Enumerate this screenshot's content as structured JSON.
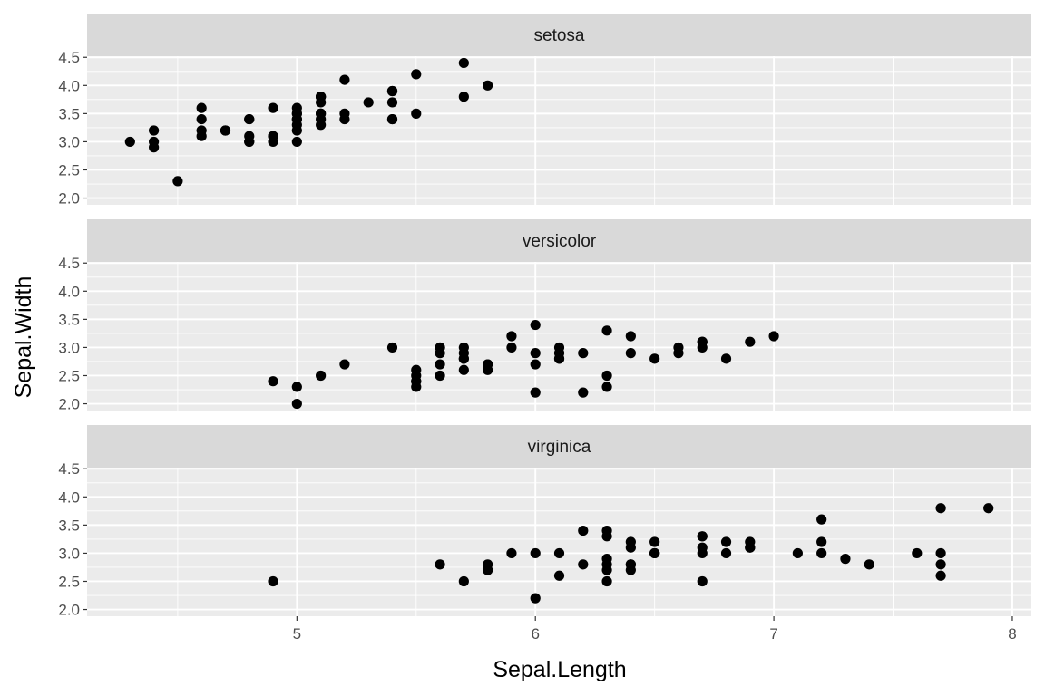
{
  "chart_data": {
    "type": "scatter",
    "xlabel": "Sepal.Length",
    "ylabel": "Sepal.Width",
    "xlim": [
      4.12,
      8.08
    ],
    "ylim": [
      1.88,
      4.52
    ],
    "x_ticks": [
      5,
      6,
      7,
      8
    ],
    "x_tick_labels": [
      "5",
      "6",
      "7",
      "8"
    ],
    "y_ticks": [
      2.0,
      2.5,
      3.0,
      3.5,
      4.0,
      4.5
    ],
    "y_tick_labels": [
      "2.0",
      "2.5",
      "3.0",
      "3.5",
      "4.0",
      "4.5"
    ],
    "grid": true,
    "legend": "none",
    "colors": {
      "panel_bg": "#ebebeb",
      "strip_bg": "#d9d9d9",
      "grid": "#ffffff",
      "point": "#000000"
    },
    "facets": [
      {
        "name": "setosa",
        "points": [
          [
            5.1,
            3.5
          ],
          [
            4.9,
            3.0
          ],
          [
            4.7,
            3.2
          ],
          [
            4.6,
            3.1
          ],
          [
            5.0,
            3.6
          ],
          [
            5.4,
            3.9
          ],
          [
            4.6,
            3.4
          ],
          [
            5.0,
            3.4
          ],
          [
            4.4,
            2.9
          ],
          [
            4.9,
            3.1
          ],
          [
            5.4,
            3.7
          ],
          [
            4.8,
            3.4
          ],
          [
            4.8,
            3.0
          ],
          [
            4.3,
            3.0
          ],
          [
            5.8,
            4.0
          ],
          [
            5.7,
            4.4
          ],
          [
            5.4,
            3.9
          ],
          [
            5.1,
            3.5
          ],
          [
            5.7,
            3.8
          ],
          [
            5.1,
            3.8
          ],
          [
            5.4,
            3.4
          ],
          [
            5.1,
            3.7
          ],
          [
            4.6,
            3.6
          ],
          [
            5.1,
            3.3
          ],
          [
            4.8,
            3.4
          ],
          [
            5.0,
            3.0
          ],
          [
            5.0,
            3.4
          ],
          [
            5.2,
            3.5
          ],
          [
            5.2,
            3.4
          ],
          [
            4.7,
            3.2
          ],
          [
            4.8,
            3.1
          ],
          [
            5.4,
            3.4
          ],
          [
            5.2,
            4.1
          ],
          [
            5.5,
            4.2
          ],
          [
            4.9,
            3.1
          ],
          [
            5.0,
            3.2
          ],
          [
            5.5,
            3.5
          ],
          [
            4.9,
            3.6
          ],
          [
            4.4,
            3.0
          ],
          [
            5.1,
            3.4
          ],
          [
            5.0,
            3.5
          ],
          [
            4.5,
            2.3
          ],
          [
            4.4,
            3.2
          ],
          [
            5.0,
            3.5
          ],
          [
            5.1,
            3.8
          ],
          [
            4.8,
            3.0
          ],
          [
            5.1,
            3.8
          ],
          [
            4.6,
            3.2
          ],
          [
            5.3,
            3.7
          ],
          [
            5.0,
            3.3
          ]
        ]
      },
      {
        "name": "versicolor",
        "points": [
          [
            7.0,
            3.2
          ],
          [
            6.4,
            3.2
          ],
          [
            6.9,
            3.1
          ],
          [
            5.5,
            2.3
          ],
          [
            6.5,
            2.8
          ],
          [
            5.7,
            2.8
          ],
          [
            6.3,
            3.3
          ],
          [
            4.9,
            2.4
          ],
          [
            6.6,
            2.9
          ],
          [
            5.2,
            2.7
          ],
          [
            5.0,
            2.0
          ],
          [
            5.9,
            3.0
          ],
          [
            6.0,
            2.2
          ],
          [
            6.1,
            2.9
          ],
          [
            5.6,
            2.9
          ],
          [
            6.7,
            3.1
          ],
          [
            5.6,
            3.0
          ],
          [
            5.8,
            2.7
          ],
          [
            6.2,
            2.2
          ],
          [
            5.6,
            2.5
          ],
          [
            5.9,
            3.2
          ],
          [
            6.1,
            2.8
          ],
          [
            6.3,
            2.5
          ],
          [
            6.1,
            2.8
          ],
          [
            6.4,
            2.9
          ],
          [
            6.6,
            3.0
          ],
          [
            6.8,
            2.8
          ],
          [
            6.7,
            3.0
          ],
          [
            6.0,
            2.9
          ],
          [
            5.7,
            2.6
          ],
          [
            5.5,
            2.4
          ],
          [
            5.5,
            2.4
          ],
          [
            5.8,
            2.7
          ],
          [
            6.0,
            2.7
          ],
          [
            5.4,
            3.0
          ],
          [
            6.0,
            3.4
          ],
          [
            6.7,
            3.1
          ],
          [
            6.3,
            2.3
          ],
          [
            5.6,
            3.0
          ],
          [
            5.5,
            2.5
          ],
          [
            5.5,
            2.6
          ],
          [
            6.1,
            3.0
          ],
          [
            5.8,
            2.6
          ],
          [
            5.0,
            2.3
          ],
          [
            5.6,
            2.7
          ],
          [
            5.7,
            3.0
          ],
          [
            5.7,
            2.9
          ],
          [
            6.2,
            2.9
          ],
          [
            5.1,
            2.5
          ],
          [
            5.7,
            2.8
          ]
        ]
      },
      {
        "name": "virginica",
        "points": [
          [
            6.3,
            3.3
          ],
          [
            5.8,
            2.7
          ],
          [
            7.1,
            3.0
          ],
          [
            6.3,
            2.9
          ],
          [
            6.5,
            3.0
          ],
          [
            7.6,
            3.0
          ],
          [
            4.9,
            2.5
          ],
          [
            7.3,
            2.9
          ],
          [
            6.7,
            2.5
          ],
          [
            7.2,
            3.6
          ],
          [
            6.5,
            3.2
          ],
          [
            6.4,
            2.7
          ],
          [
            6.8,
            3.0
          ],
          [
            5.7,
            2.5
          ],
          [
            5.8,
            2.8
          ],
          [
            6.4,
            3.2
          ],
          [
            6.5,
            3.0
          ],
          [
            7.7,
            3.8
          ],
          [
            7.7,
            2.6
          ],
          [
            6.0,
            2.2
          ],
          [
            6.9,
            3.2
          ],
          [
            5.6,
            2.8
          ],
          [
            7.7,
            2.8
          ],
          [
            6.3,
            2.7
          ],
          [
            6.7,
            3.3
          ],
          [
            7.2,
            3.2
          ],
          [
            6.2,
            2.8
          ],
          [
            6.1,
            3.0
          ],
          [
            6.4,
            2.8
          ],
          [
            7.2,
            3.0
          ],
          [
            7.4,
            2.8
          ],
          [
            7.9,
            3.8
          ],
          [
            6.4,
            2.8
          ],
          [
            6.3,
            2.8
          ],
          [
            6.1,
            2.6
          ],
          [
            7.7,
            3.0
          ],
          [
            6.3,
            3.4
          ],
          [
            6.4,
            3.1
          ],
          [
            6.0,
            3.0
          ],
          [
            6.9,
            3.1
          ],
          [
            6.7,
            3.1
          ],
          [
            6.9,
            3.1
          ],
          [
            5.8,
            2.7
          ],
          [
            6.8,
            3.2
          ],
          [
            6.7,
            3.3
          ],
          [
            6.7,
            3.0
          ],
          [
            6.3,
            2.5
          ],
          [
            6.5,
            3.0
          ],
          [
            6.2,
            3.4
          ],
          [
            5.9,
            3.0
          ]
        ]
      }
    ]
  }
}
